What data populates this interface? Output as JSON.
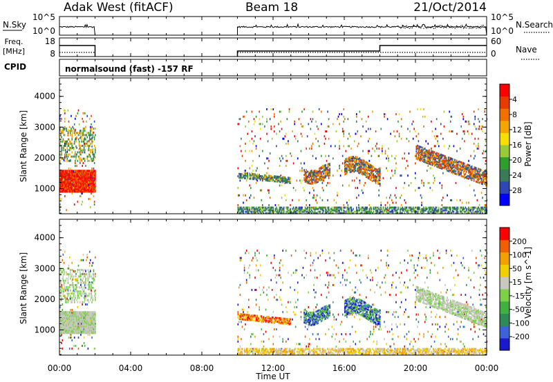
{
  "header": {
    "title": "Adak West (fitACF)",
    "beam": "Beam 18",
    "date": "21/Oct/2014"
  },
  "panels": {
    "nsky": {
      "left_label": "N.Sky",
      "left_ticks": [
        "10^5",
        "10^0"
      ],
      "right_label": "N.Search",
      "right_ticks": [
        "10^5",
        "10^0"
      ]
    },
    "freq": {
      "left_label_line1": "Freq.",
      "left_label_line2": "[MHz]",
      "left_ticks": [
        "18",
        "8"
      ],
      "right_label": "Nave",
      "right_ticks": [
        "60",
        "0"
      ]
    },
    "cpid": {
      "label": "CPID",
      "text": "normalsound (fast) -157 RF"
    }
  },
  "chart_data": [
    {
      "type": "heatmap",
      "name": "power",
      "ylabel": "Slant Range [km]",
      "ylim": [
        180,
        4600
      ],
      "xlim": [
        0,
        24
      ],
      "yticks": [
        1000,
        2000,
        3000,
        4000
      ],
      "colorbar": {
        "label": "Power [dB]",
        "ticks": [
          "4",
          "8",
          "12",
          "16",
          "20",
          "24",
          "28"
        ],
        "colors": [
          "#0000ff",
          "#2f47b4",
          "#3a7a5a",
          "#2e9e2e",
          "#9ac93a",
          "#f7e000",
          "#f5a500",
          "#f07000",
          "#e63a00",
          "#ff0000"
        ]
      },
      "data_windows_ut": [
        [
          0,
          2
        ],
        [
          10,
          24
        ]
      ]
    },
    {
      "type": "heatmap",
      "name": "velocity",
      "ylabel": "Slant Range [km]",
      "ylim": [
        180,
        4600
      ],
      "xlim": [
        0,
        24
      ],
      "yticks": [
        1000,
        2000,
        3000,
        4000
      ],
      "colorbar": {
        "label": "Velocity [m s^-1]",
        "ticks": [
          "200",
          "100",
          "50",
          "15",
          "-15",
          "-50",
          "-100",
          "-200"
        ],
        "colors": [
          "#1a1acc",
          "#3c64d8",
          "#2e8b57",
          "#40b040",
          "#7cd04a",
          "#c8c8c0",
          "#f0d000",
          "#f0a000",
          "#f06000",
          "#ff0000"
        ]
      },
      "data_windows_ut": [
        [
          0,
          2
        ],
        [
          10,
          24
        ]
      ]
    }
  ],
  "xaxis": {
    "label": "Time UT",
    "ticks": [
      "00:00",
      "04:00",
      "08:00",
      "12:00",
      "16:00",
      "20:00",
      "00:00"
    ]
  }
}
